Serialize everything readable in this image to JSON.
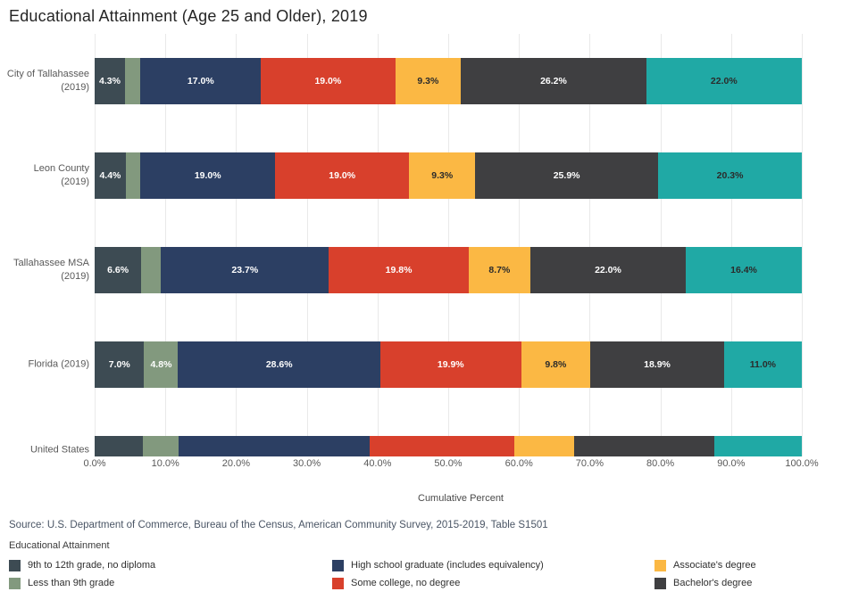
{
  "title": "Educational Attainment (Age 25 and Older), 2019",
  "source": "Source: U.S. Department of Commerce, Bureau of the Census, American Community Survey, 2015-2019, Table S1501",
  "chart_data": {
    "type": "bar",
    "orientation": "horizontal",
    "stacked": true,
    "title": "Educational Attainment (Age 25 and Older), 2019",
    "xlabel": "Cumulative Percent",
    "xlim": [
      0,
      100
    ],
    "x_ticks": [
      "0.0%",
      "10.0%",
      "20.0%",
      "30.0%",
      "40.0%",
      "50.0%",
      "60.0%",
      "70.0%",
      "80.0%",
      "90.0%",
      "100.0%"
    ],
    "grid": true,
    "legend_position": "bottom",
    "series": [
      {
        "name": "9th to 12th grade, no diploma",
        "color": "#3d4b53",
        "label_color": "#ffffff",
        "in_visible_legend": true
      },
      {
        "name": "Less than 9th grade",
        "color": "#82997e",
        "label_color": "#ffffff",
        "in_visible_legend": true
      },
      {
        "name": "High school graduate (includes equivalency)",
        "color": "#2c3f63",
        "label_color": "#ffffff",
        "in_visible_legend": true
      },
      {
        "name": "Some college, no degree",
        "color": "#d8402c",
        "label_color": "#ffffff",
        "in_visible_legend": true
      },
      {
        "name": "Associate's degree",
        "color": "#fbb844",
        "label_color": "#2b2b2b",
        "in_visible_legend": true
      },
      {
        "name": "Bachelor's degree",
        "color": "#3f3f41",
        "label_color": "#ffffff",
        "in_visible_legend": true
      },
      {
        "name": "",
        "color": "#20a9a5",
        "label_color": "#2b2b2b",
        "in_visible_legend": false
      }
    ],
    "rows": [
      {
        "category_lines": [
          "City of Tallahassee",
          "(2019)"
        ],
        "values": [
          4.3,
          2.2,
          17.0,
          19.0,
          9.3,
          26.2,
          22.0
        ],
        "labels": [
          "4.3%",
          null,
          "17.0%",
          "19.0%",
          "9.3%",
          "26.2%",
          "22.0%"
        ]
      },
      {
        "category_lines": [
          "Leon County",
          "(2019)"
        ],
        "values": [
          4.4,
          2.1,
          19.0,
          19.0,
          9.3,
          25.9,
          20.3
        ],
        "labels": [
          "4.4%",
          null,
          "19.0%",
          "19.0%",
          "9.3%",
          "25.9%",
          "20.3%"
        ]
      },
      {
        "category_lines": [
          "Tallahassee MSA",
          "(2019)"
        ],
        "values": [
          6.6,
          2.8,
          23.7,
          19.8,
          8.7,
          22.0,
          16.4
        ],
        "labels": [
          "6.6%",
          null,
          "23.7%",
          "19.8%",
          "8.7%",
          "22.0%",
          "16.4%"
        ]
      },
      {
        "category_lines": [
          "Florida (2019)"
        ],
        "values": [
          7.0,
          4.8,
          28.6,
          19.9,
          9.8,
          18.9,
          11.0
        ],
        "labels": [
          "7.0%",
          "4.8%",
          "28.6%",
          "19.9%",
          "9.8%",
          "18.9%",
          "11.0%"
        ]
      },
      {
        "category_lines": [
          "United States"
        ],
        "values": [
          6.8,
          5.1,
          27.0,
          20.4,
          8.5,
          19.8,
          12.4
        ],
        "labels": [
          null,
          null,
          null,
          null,
          null,
          null,
          null
        ],
        "clipped": true
      }
    ]
  },
  "x_axis_title": "Cumulative Percent",
  "legend": {
    "title": "Educational Attainment",
    "visible_items": [
      {
        "label": "9th to 12th grade, no diploma",
        "color": "#3d4b53"
      },
      {
        "label": "Less than 9th grade",
        "color": "#82997e"
      },
      {
        "label": "High school graduate (includes equivalency)",
        "color": "#2c3f63"
      },
      {
        "label": "Some college, no degree",
        "color": "#d8402c"
      },
      {
        "label": "Associate's degree",
        "color": "#fbb844"
      },
      {
        "label": "Bachelor's degree",
        "color": "#3f3f41"
      }
    ]
  }
}
